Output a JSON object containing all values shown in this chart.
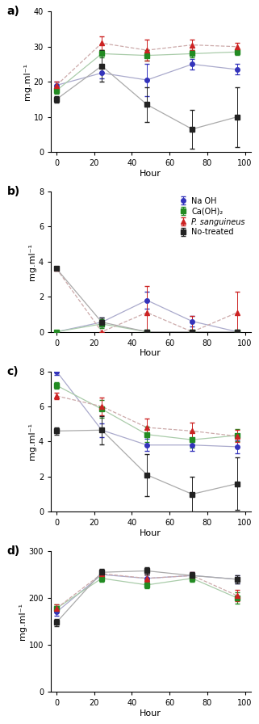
{
  "hours": [
    0,
    24,
    48,
    72,
    96
  ],
  "panel_a": {
    "title": "a)",
    "ylabel": "mg.ml⁻¹",
    "ylim": [
      0,
      40
    ],
    "yticks": [
      0,
      10,
      20,
      30,
      40
    ],
    "NaOH": {
      "y": [
        19.0,
        22.5,
        20.5,
        25.0,
        23.5
      ],
      "yerr": [
        1.0,
        1.5,
        4.5,
        1.5,
        1.5
      ]
    },
    "CaOH2": {
      "y": [
        17.5,
        28.0,
        27.5,
        28.0,
        28.5
      ],
      "yerr": [
        0.8,
        1.0,
        1.5,
        1.0,
        0.8
      ]
    },
    "Psang": {
      "y": [
        19.0,
        31.0,
        29.0,
        30.5,
        30.0
      ],
      "yerr": [
        1.0,
        2.0,
        3.0,
        1.5,
        1.0
      ]
    },
    "Notreated": {
      "y": [
        15.0,
        24.5,
        13.5,
        6.5,
        10.0
      ],
      "yerr": [
        1.0,
        4.5,
        5.0,
        5.5,
        8.5
      ]
    }
  },
  "panel_b": {
    "title": "b)",
    "ylabel": "mg.ml⁻¹",
    "ylim": [
      0,
      8
    ],
    "yticks": [
      0,
      2,
      4,
      6,
      8
    ],
    "NaOH": {
      "y": [
        0.0,
        0.55,
        1.8,
        0.6,
        0.0
      ],
      "yerr": [
        0.0,
        0.25,
        0.5,
        0.3,
        0.0
      ]
    },
    "CaOH2": {
      "y": [
        0.0,
        0.45,
        0.0,
        0.0,
        0.0
      ],
      "yerr": [
        0.0,
        0.25,
        0.0,
        0.0,
        0.0
      ]
    },
    "Psang": {
      "y": [
        3.6,
        0.0,
        1.1,
        0.0,
        1.1
      ],
      "yerr": [
        0.0,
        0.0,
        1.5,
        0.9,
        1.2
      ]
    },
    "Notreated": {
      "y": [
        3.6,
        0.55,
        0.0,
        0.0,
        0.0
      ],
      "yerr": [
        0.0,
        0.25,
        0.0,
        0.0,
        0.0
      ]
    }
  },
  "panel_c": {
    "title": "c)",
    "ylabel": "mg.ml⁻¹",
    "ylim": [
      0,
      8
    ],
    "yticks": [
      0,
      2,
      4,
      6,
      8
    ],
    "NaOH": {
      "y": [
        8.0,
        4.65,
        3.8,
        3.8,
        3.7
      ],
      "yerr": [
        0.2,
        0.4,
        0.35,
        0.35,
        0.35
      ]
    },
    "CaOH2": {
      "y": [
        7.2,
        5.85,
        4.4,
        4.1,
        4.35
      ],
      "yerr": [
        0.2,
        0.5,
        0.45,
        0.45,
        0.35
      ]
    },
    "Psang": {
      "y": [
        6.6,
        6.0,
        4.8,
        4.6,
        4.3
      ],
      "yerr": [
        0.2,
        0.5,
        0.5,
        0.5,
        0.35
      ]
    },
    "Notreated": {
      "y": [
        4.6,
        4.65,
        2.1,
        1.0,
        1.6
      ],
      "yerr": [
        0.2,
        0.8,
        1.2,
        1.0,
        1.5
      ]
    }
  },
  "panel_d": {
    "title": "d)",
    "ylabel": "mg.ml⁻¹",
    "ylim": [
      0,
      300
    ],
    "yticks": [
      0,
      100,
      200,
      300
    ],
    "NaOH": {
      "y": [
        170,
        250,
        242,
        248,
        240
      ],
      "yerr": [
        8,
        8,
        8,
        8,
        8
      ]
    },
    "CaOH2": {
      "y": [
        178,
        242,
        228,
        242,
        200
      ],
      "yerr": [
        8,
        8,
        8,
        8,
        12
      ]
    },
    "Psang": {
      "y": [
        178,
        252,
        242,
        248,
        205
      ],
      "yerr": [
        8,
        8,
        8,
        8,
        12
      ]
    },
    "Notreated": {
      "y": [
        148,
        255,
        258,
        248,
        240
      ],
      "yerr": [
        8,
        8,
        8,
        8,
        8
      ]
    }
  },
  "colors": {
    "NaOH": "#3333bb",
    "CaOH2": "#228B22",
    "Psang": "#cc2222",
    "Notreated": "#222222"
  },
  "line_colors": {
    "NaOH": "#aaaacc",
    "CaOH2": "#aaccaa",
    "Psang": "#ccaaaa",
    "Notreated": "#aaaaaa"
  },
  "markers": {
    "NaOH": "o",
    "CaOH2": "s",
    "Psang": "^",
    "Notreated": "s"
  },
  "linestyles": {
    "NaOH": "-",
    "CaOH2": "-",
    "Psang": "--",
    "Notreated": "-"
  },
  "legend_labels": {
    "NaOH": "Na OH",
    "CaOH2": "Ca(OH)₂",
    "Psang": "P. sanguineus",
    "Notreated": "No-treated"
  }
}
